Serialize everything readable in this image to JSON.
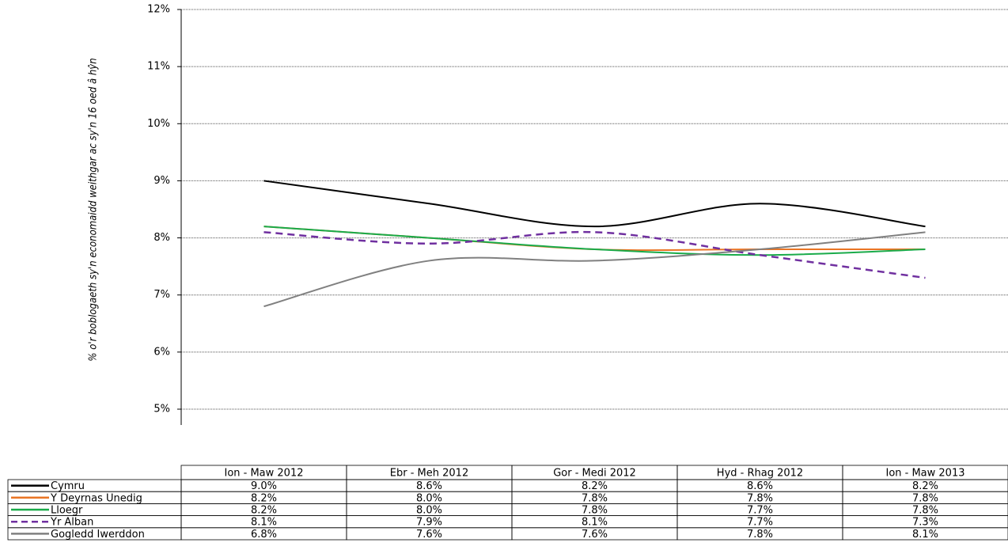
{
  "chart_data": {
    "type": "line",
    "y_label": "% o'r boblogaeth sy'n economaidd weithgar ac sy'n 16 oed â hŷn",
    "categories": [
      "Ion - Maw 2012",
      "Ebr - Meh 2012",
      "Gor - Medi 2012",
      "Hyd - Rhag 2012",
      "Ion - Maw 2013"
    ],
    "ylim": [
      5,
      12
    ],
    "yticks": [
      {
        "value": 5,
        "label": "5%"
      },
      {
        "value": 6,
        "label": "6%"
      },
      {
        "value": 7,
        "label": "7%"
      },
      {
        "value": 8,
        "label": "8%"
      },
      {
        "value": 9,
        "label": "9%"
      },
      {
        "value": 10,
        "label": "10%"
      },
      {
        "value": 11,
        "label": "11%"
      },
      {
        "value": 12,
        "label": "12%"
      }
    ],
    "grid": true,
    "smooth": true,
    "series": [
      {
        "name": "Cymru",
        "color": "#000000",
        "dashed": false,
        "values": [
          9.0,
          8.6,
          8.2,
          8.6,
          8.2
        ],
        "value_labels": [
          "9.0%",
          "8.6%",
          "8.2%",
          "8.6%",
          "8.2%"
        ]
      },
      {
        "name": "Y Deyrnas Unedig",
        "color": "#e97424",
        "dashed": false,
        "values": [
          8.2,
          8.0,
          7.8,
          7.8,
          7.8
        ],
        "value_labels": [
          "8.2%",
          "8.0%",
          "7.8%",
          "7.8%",
          "7.8%"
        ]
      },
      {
        "name": "Lloegr",
        "color": "#1aab4a",
        "dashed": false,
        "values": [
          8.2,
          8.0,
          7.8,
          7.7,
          7.8
        ],
        "value_labels": [
          "8.2%",
          "8.0%",
          "7.8%",
          "7.7%",
          "7.8%"
        ]
      },
      {
        "name": "Yr Alban",
        "color": "#7030a0",
        "dashed": true,
        "values": [
          8.1,
          7.9,
          8.1,
          7.7,
          7.3
        ],
        "value_labels": [
          "8.1%",
          "7.9%",
          "8.1%",
          "7.7%",
          "7.3%"
        ]
      },
      {
        "name": "Gogledd Iwerddon",
        "color": "#808080",
        "dashed": false,
        "values": [
          6.8,
          7.6,
          7.6,
          7.8,
          8.1
        ],
        "value_labels": [
          "6.8%",
          "7.6%",
          "7.6%",
          "7.8%",
          "8.1%"
        ]
      }
    ]
  }
}
